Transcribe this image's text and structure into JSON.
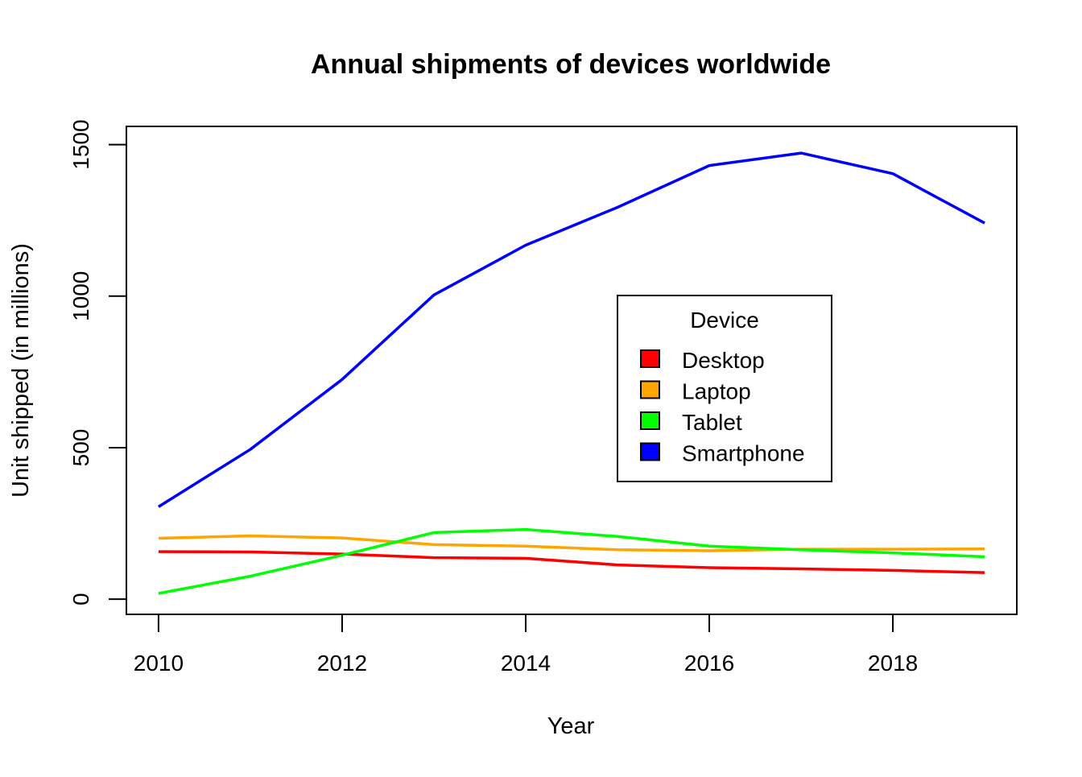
{
  "chart_data": {
    "type": "line",
    "title": "Annual shipments of devices worldwide",
    "xlabel": "Year",
    "ylabel": "Unit shipped (in millions)",
    "x": [
      2010,
      2011,
      2012,
      2013,
      2014,
      2015,
      2016,
      2017,
      2018,
      2019
    ],
    "xlim": [
      2009.65,
      2019.35
    ],
    "ylim": [
      -50,
      1560
    ],
    "xticks": [
      2010,
      2012,
      2014,
      2016,
      2018
    ],
    "yticks": [
      0,
      500,
      1000,
      1500
    ],
    "grid": false,
    "legend": {
      "title": "Device",
      "placement": "center-right"
    },
    "series": [
      {
        "name": "Desktop",
        "color": "#ff0000",
        "values": [
          157,
          156,
          149,
          137,
          135,
          113,
          104,
          100,
          95,
          88
        ]
      },
      {
        "name": "Laptop",
        "color": "#ffa500",
        "values": [
          201,
          209,
          202,
          180,
          175,
          163,
          160,
          165,
          165,
          166
        ]
      },
      {
        "name": "Tablet",
        "color": "#00ff00",
        "values": [
          19,
          76,
          145,
          220,
          230,
          207,
          175,
          163,
          153,
          140
        ]
      },
      {
        "name": "Smartphone",
        "color": "#0000ff",
        "values": [
          305,
          494,
          725,
          1004,
          1168,
          1293,
          1431,
          1472,
          1404,
          1241
        ]
      }
    ]
  }
}
